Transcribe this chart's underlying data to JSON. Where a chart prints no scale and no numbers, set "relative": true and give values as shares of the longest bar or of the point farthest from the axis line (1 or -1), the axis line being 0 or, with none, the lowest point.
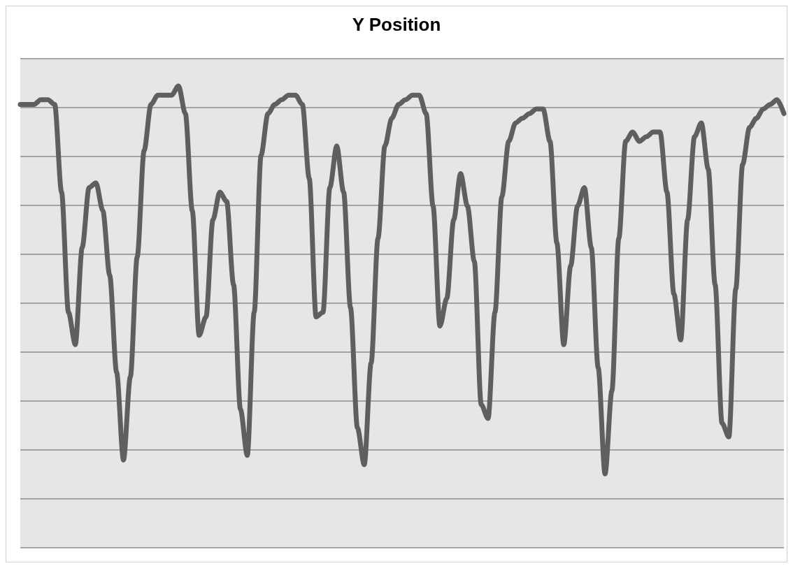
{
  "chart_data": {
    "type": "line",
    "title": "Y Position",
    "relative": true,
    "grid": "y",
    "marker": "none",
    "line_style": "solid",
    "categories": [
      null,
      null,
      null,
      null,
      null,
      null,
      null,
      null,
      null,
      null,
      null,
      null,
      null,
      null,
      null,
      null,
      null,
      null,
      null,
      null,
      null,
      null,
      null,
      null,
      null,
      null,
      null,
      null,
      null,
      null,
      null,
      null,
      null,
      null,
      null,
      null,
      null,
      null,
      null,
      null,
      null,
      null,
      null,
      null,
      null,
      null,
      null,
      null,
      null,
      null,
      null,
      null,
      null,
      null,
      null,
      null,
      null,
      null,
      null,
      null,
      null,
      null,
      null,
      null,
      null,
      null,
      null,
      null,
      null,
      null,
      null,
      null,
      null,
      null,
      null,
      null,
      null,
      null,
      null,
      null,
      null,
      null,
      null,
      null,
      null,
      null,
      null,
      null,
      null,
      null,
      null,
      null,
      null,
      null,
      null,
      null,
      null,
      null,
      null,
      null,
      null,
      null,
      null,
      null,
      null,
      null,
      null,
      null,
      null,
      null,
      null,
      null
    ],
    "series": [
      {
        "color": "#5f5f5f",
        "values": [
          0.96,
          0.96,
          0.96,
          0.97,
          0.97,
          0.96,
          0.77,
          0.51,
          0.44,
          0.65,
          0.78,
          0.79,
          0.73,
          0.59,
          0.38,
          0.19,
          0.37,
          0.63,
          0.86,
          0.96,
          0.98,
          0.98,
          0.98,
          1,
          0.94,
          0.73,
          0.46,
          0.5,
          0.71,
          0.77,
          0.75,
          0.57,
          0.3,
          0.2,
          0.51,
          0.85,
          0.94,
          0.96,
          0.97,
          0.98,
          0.98,
          0.96,
          0.8,
          0.5,
          0.51,
          0.78,
          0.87,
          0.77,
          0.52,
          0.26,
          0.18,
          0.4,
          0.67,
          0.87,
          0.93,
          0.96,
          0.97,
          0.98,
          0.98,
          0.94,
          0.74,
          0.48,
          0.54,
          0.71,
          0.81,
          0.74,
          0.62,
          0.31,
          0.28,
          0.51,
          0.76,
          0.88,
          0.92,
          0.93,
          0.94,
          0.95,
          0.95,
          0.88,
          0.66,
          0.44,
          0.61,
          0.74,
          0.78,
          0.65,
          0.39,
          0.16,
          0.34,
          0.67,
          0.88,
          0.9,
          0.88,
          0.89,
          0.9,
          0.9,
          0.77,
          0.55,
          0.45,
          0.71,
          0.89,
          0.92,
          0.82,
          0.57,
          0.27,
          0.24,
          0.56,
          0.83,
          0.91,
          0.93,
          0.95,
          0.96,
          0.97,
          0.94
        ]
      }
    ]
  }
}
